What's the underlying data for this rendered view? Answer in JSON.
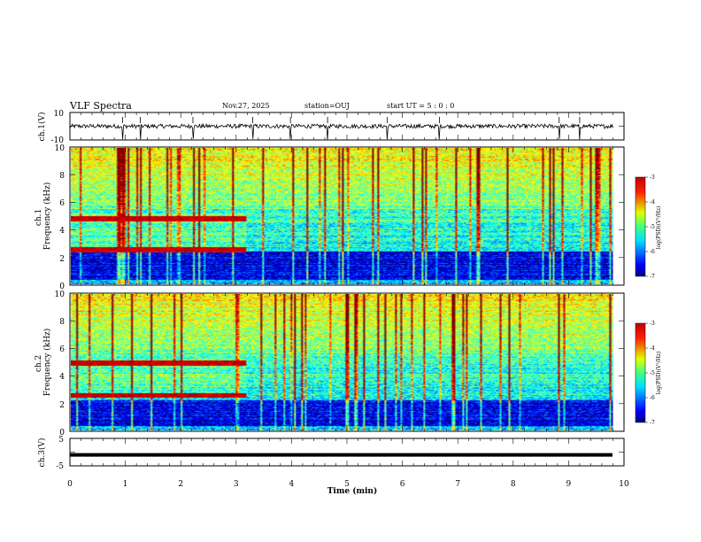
{
  "header": {
    "title": "VLF Spectra",
    "date": "Nov.27, 2025",
    "station": "station=OUJ",
    "start": "start  UT =  5 : 0  : 0"
  },
  "chart_data": [
    {
      "type": "line",
      "name": "ch1-waveform",
      "ylabel": "ch.1(V)",
      "ylim": [
        -10,
        10
      ],
      "yticks": [
        "10",
        "-10"
      ],
      "baseline": 0,
      "noise_amplitude": 1.5,
      "spike_times_min": [
        0.95,
        1.27,
        2.22,
        3.3,
        3.98,
        4.65,
        5.73,
        6.67,
        8.83,
        9.2
      ]
    },
    {
      "type": "heatmap",
      "name": "ch1-spectrogram",
      "ylabel": "ch.1\nFrequency (kHz)",
      "ylim": [
        0,
        10
      ],
      "yticks": [
        "0",
        "2",
        "4",
        "6",
        "8",
        "10"
      ],
      "xlim": [
        0,
        9.8
      ],
      "color_range": [
        -7,
        -3
      ],
      "colorbar_ticks": [
        "-3",
        "-4",
        "-5",
        "-6",
        "-7"
      ],
      "colorbar_label": "log(PSD)(V²/Hz)",
      "band_line_until_min": 3.15,
      "band_lines_khz": [
        4.8,
        2.5
      ],
      "dark_band_khz": [
        0.3,
        2.4
      ]
    },
    {
      "type": "heatmap",
      "name": "ch2-spectrogram",
      "ylabel": "ch.2\nFrequency (kHz)",
      "ylim": [
        0,
        10
      ],
      "yticks": [
        "0",
        "2",
        "4",
        "6",
        "8",
        "10"
      ],
      "xlim": [
        0,
        9.8
      ],
      "color_range": [
        -7,
        -3
      ],
      "colorbar_ticks": [
        "-3",
        "-4",
        "-5",
        "-6",
        "-7"
      ],
      "colorbar_label": "log(PSD)(V²/Hz)",
      "band_line_until_min": 3.15,
      "band_lines_khz": [
        4.95,
        2.55
      ],
      "dark_band_khz": [
        0.3,
        2.2
      ]
    },
    {
      "type": "line",
      "name": "ch3-waveform",
      "ylabel": "ch.3(V)",
      "ylim": [
        -5,
        5
      ],
      "yticks": [
        "5",
        "0",
        "-5"
      ],
      "constant_value": -1
    }
  ],
  "xaxis": {
    "label": "Time  (min)",
    "range": [
      0,
      10
    ],
    "ticks": [
      "0",
      "1",
      "2",
      "3",
      "4",
      "5",
      "6",
      "7",
      "8",
      "9",
      "10"
    ]
  }
}
